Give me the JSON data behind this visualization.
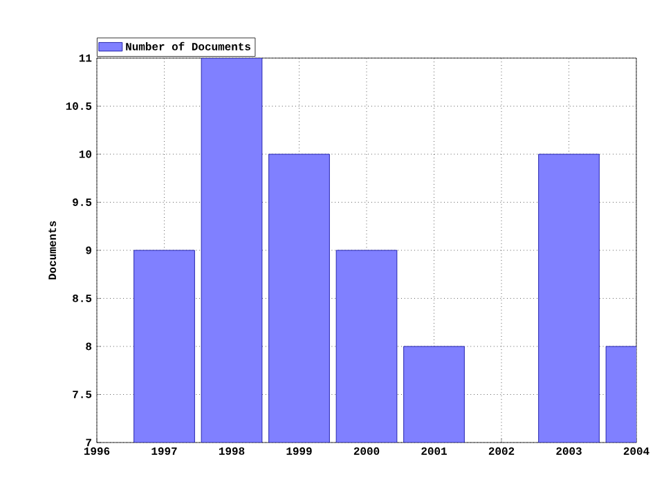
{
  "chart_data": {
    "type": "bar",
    "ylabel": "Documents",
    "x": [
      1997,
      1998,
      1999,
      2000,
      2001,
      2002,
      2003,
      2004
    ],
    "series": [
      {
        "name": "Number of Documents",
        "color": "#8080ff",
        "values": [
          9,
          11,
          10,
          9,
          8,
          null,
          10,
          8
        ]
      }
    ],
    "xlim": [
      1996,
      2004
    ],
    "xticks": [
      1996,
      1997,
      1998,
      1999,
      2000,
      2001,
      2002,
      2003,
      2004
    ],
    "ylim": [
      7,
      11
    ],
    "yticks": [
      7,
      7.5,
      8,
      8.5,
      9,
      9.5,
      10,
      10.5,
      11
    ],
    "grid": true,
    "legend": "top left"
  }
}
